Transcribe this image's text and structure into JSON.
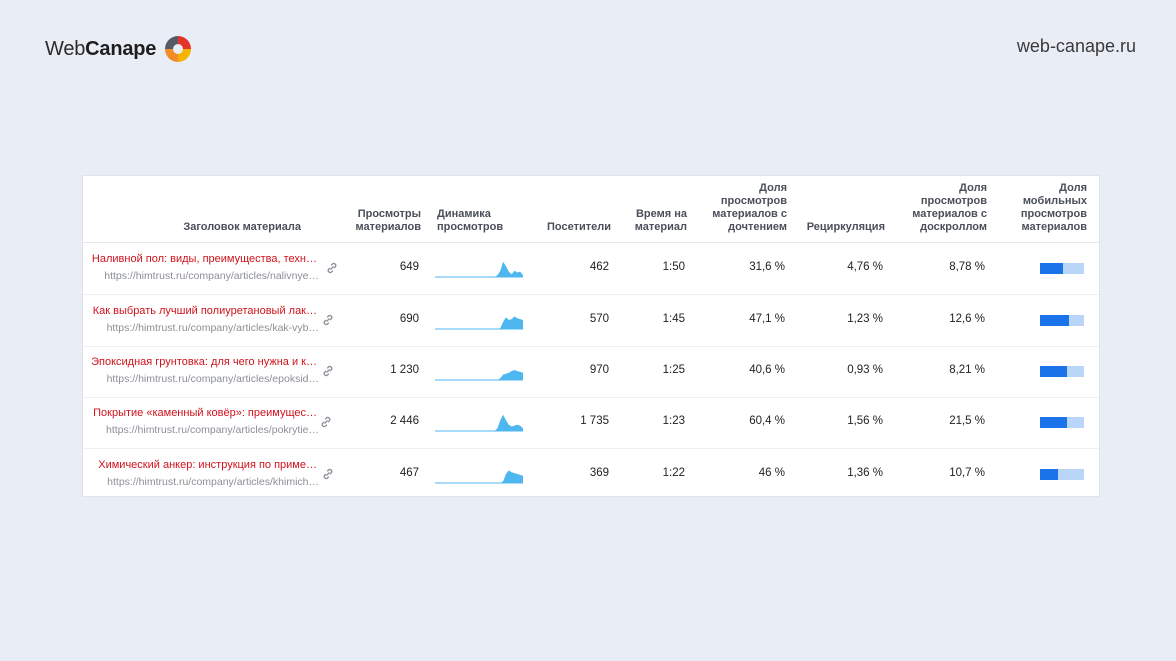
{
  "brand": {
    "part1": "Web",
    "part2": "Canape"
  },
  "site_url": "web-canape.ru",
  "colors": {
    "title_red": "#d0121b",
    "spark": "#4fb7ef",
    "mobile_fill": "#1a73e8",
    "mobile_bg": "#b9d6f8"
  },
  "table": {
    "headers": {
      "title": "Заголовок материала",
      "views": "Просмотры материалов",
      "dynamics": "Динамика просмотров",
      "visitors": "Посетители",
      "time": "Время на материал",
      "read_share": "Доля просмотров материалов с дочтением",
      "recirculation": "Рециркуляция",
      "scroll_share": "Доля просмотров материалов с доскроллом",
      "mobile_share": "Доля мобильных просмотров материалов"
    },
    "rows": [
      {
        "title": "Наливной пол: виды, преимущества, техн…",
        "url": "https://himtrust.ru/company/articles/nalivnye…",
        "views": "649",
        "visitors": "462",
        "time": "1:50",
        "read_share": "31,6 %",
        "recirculation": "4,76 %",
        "scroll_share": "8,78 %",
        "mobile_fraction": 0.52,
        "spark": [
          0,
          0,
          0,
          0,
          0,
          0,
          0,
          0,
          0,
          0,
          0,
          0,
          0,
          0,
          0,
          0,
          0,
          0,
          0,
          0,
          0,
          0,
          0.1,
          0.35,
          0.85,
          0.6,
          0.3,
          0.15,
          0.35,
          0.25,
          0.3,
          0.1
        ]
      },
      {
        "title": "Как выбрать лучший полиуретановый лак…",
        "url": "https://himtrust.ru/company/articles/kak-vyb…",
        "views": "690",
        "visitors": "570",
        "time": "1:45",
        "read_share": "47,1 %",
        "recirculation": "1,23 %",
        "scroll_share": "12,6 %",
        "mobile_fraction": 0.66,
        "spark": [
          0,
          0,
          0,
          0,
          0,
          0,
          0,
          0,
          0,
          0,
          0,
          0,
          0,
          0,
          0,
          0,
          0,
          0,
          0,
          0,
          0,
          0,
          0,
          0.05,
          0.4,
          0.65,
          0.5,
          0.55,
          0.7,
          0.6,
          0.55,
          0.5
        ]
      },
      {
        "title": "Эпоксидная грунтовка: для чего нужна и к…",
        "url": "https://himtrust.ru/company/articles/epoksid…",
        "views": "1 230",
        "visitors": "970",
        "time": "1:25",
        "read_share": "40,6 %",
        "recirculation": "0,93 %",
        "scroll_share": "8,21 %",
        "mobile_fraction": 0.62,
        "spark": [
          0,
          0,
          0,
          0,
          0,
          0,
          0,
          0,
          0,
          0,
          0,
          0,
          0,
          0,
          0,
          0,
          0,
          0,
          0,
          0,
          0,
          0,
          0,
          0.1,
          0.3,
          0.35,
          0.4,
          0.5,
          0.55,
          0.5,
          0.45,
          0.4
        ]
      },
      {
        "title": "Покрытие «каменный ковёр»: преимущес…",
        "url": "https://himtrust.ru/company/articles/pokrytie…",
        "views": "2 446",
        "visitors": "1 735",
        "time": "1:23",
        "read_share": "60,4 %",
        "recirculation": "1,56 %",
        "scroll_share": "21,5 %",
        "mobile_fraction": 0.62,
        "spark": [
          0,
          0,
          0,
          0,
          0,
          0,
          0,
          0,
          0,
          0,
          0,
          0,
          0,
          0,
          0,
          0,
          0,
          0,
          0,
          0,
          0,
          0,
          0.15,
          0.6,
          0.9,
          0.6,
          0.35,
          0.25,
          0.3,
          0.35,
          0.3,
          0.15
        ]
      },
      {
        "title": "Химический анкер: инструкция по приме…",
        "url": "https://himtrust.ru/company/articles/khimich…",
        "views": "467",
        "visitors": "369",
        "time": "1:22",
        "read_share": "46 %",
        "recirculation": "1,36 %",
        "scroll_share": "10,7 %",
        "mobile_fraction": 0.42,
        "spark": [
          0,
          0,
          0,
          0,
          0,
          0,
          0,
          0,
          0,
          0,
          0,
          0,
          0,
          0,
          0,
          0,
          0,
          0,
          0,
          0,
          0,
          0,
          0,
          0,
          0.1,
          0.5,
          0.7,
          0.6,
          0.55,
          0.5,
          0.45,
          0.4
        ]
      }
    ]
  }
}
